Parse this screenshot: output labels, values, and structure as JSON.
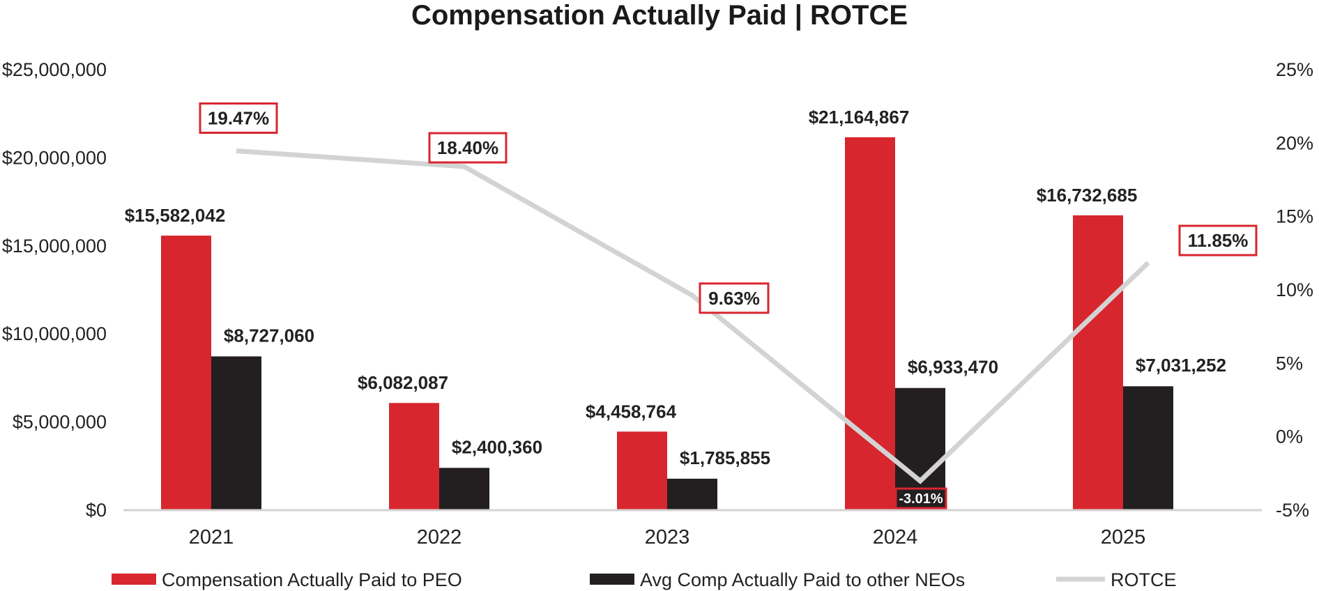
{
  "chart_data": {
    "type": "bar",
    "title": "Compensation Actually Paid | ROTCE",
    "categories": [
      "2021",
      "2022",
      "2023",
      "2024",
      "2025"
    ],
    "series": [
      {
        "name": "Compensation Actually Paid to PEO",
        "color": "#d8262e",
        "values": [
          15582042,
          6082087,
          4458764,
          21164867,
          16732685
        ],
        "labels": [
          "$15,582,042",
          "$6,082,087",
          "$4,458,764",
          "$21,164,867",
          "$16,732,685"
        ]
      },
      {
        "name": "Avg Comp Actually Paid to other NEOs",
        "color": "#231f20",
        "values": [
          8727060,
          2400360,
          1785855,
          6933470,
          7031252
        ],
        "labels": [
          "$8,727,060",
          "$2,400,360",
          "$1,785,855",
          "$6,933,470",
          "$7,031,252"
        ]
      }
    ],
    "line_series": {
      "name": "ROTCE",
      "color": "#d3d3d3",
      "label_border_color": "#d8262e",
      "values": [
        19.47,
        18.4,
        9.63,
        -3.01,
        11.85
      ],
      "labels": [
        "19.47%",
        "18.40%",
        "9.63%",
        "-3.01%",
        "11.85%"
      ]
    },
    "y_left": {
      "ylim": [
        0,
        25000000
      ],
      "ticks": [
        0,
        5000000,
        10000000,
        15000000,
        20000000,
        25000000
      ],
      "tick_labels": [
        "$0",
        "$5,000,000",
        "$10,000,000",
        "$15,000,000",
        "$20,000,000",
        "$25,000,000"
      ]
    },
    "y_right": {
      "ylim": [
        -5,
        25
      ],
      "ticks": [
        -5,
        0,
        5,
        10,
        15,
        20,
        25
      ],
      "tick_labels": [
        "-5%",
        "0%",
        "5%",
        "10%",
        "15%",
        "20%",
        "25%"
      ]
    },
    "xlabel": "",
    "ylabel": "",
    "grid": false,
    "legend_position": "bottom"
  }
}
